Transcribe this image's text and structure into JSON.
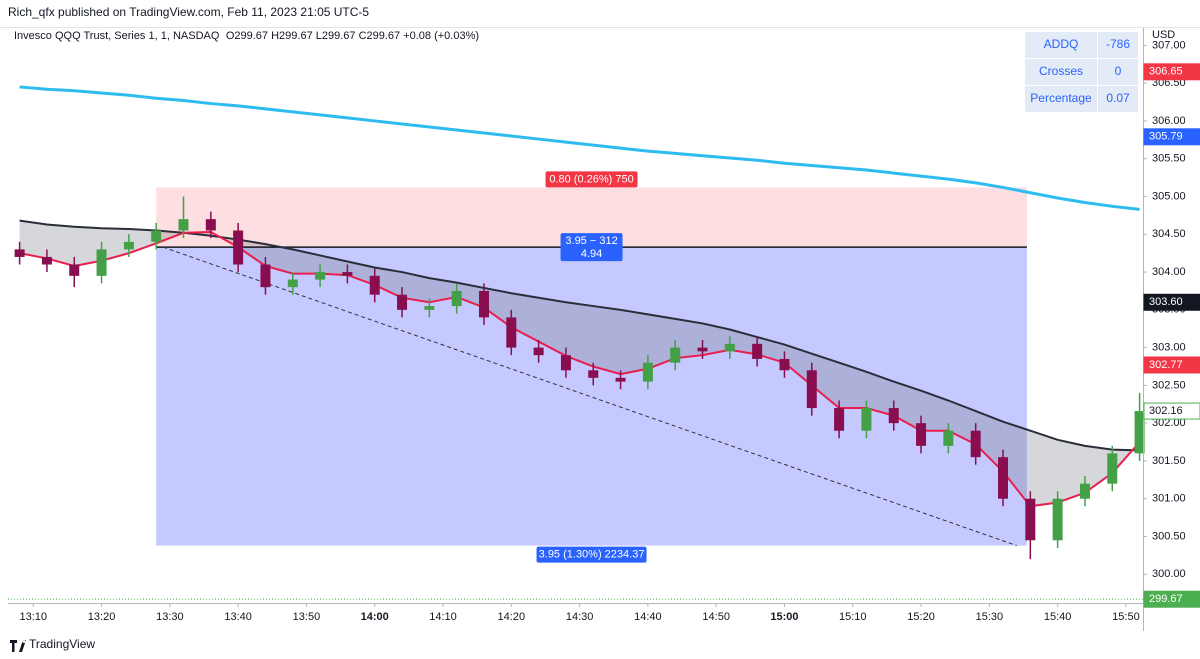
{
  "header": {
    "publisher": "Rich_qfx published on TradingView.com, Feb 11, 2023 21:05 UTC-5",
    "symbol": "Invesco QQQ Trust, Series 1, 1, NASDAQ",
    "ohlc": "O299.67 H299.67 L299.67 C299.67 +0.08 (+0.03%)",
    "currency": "USD"
  },
  "table": {
    "rows": [
      [
        "ADDQ",
        "-786"
      ],
      [
        "Crosses",
        "0"
      ],
      [
        "Percentage",
        "0.07"
      ]
    ]
  },
  "footer": {
    "brand": "TradingView"
  },
  "chart_data": {
    "type": "candlestick",
    "x": [
      788,
      792,
      796,
      800,
      804,
      808,
      812,
      816,
      820,
      824,
      828,
      832,
      836,
      840,
      844,
      848,
      852,
      856,
      860,
      864,
      868,
      872,
      876,
      880,
      884,
      888,
      892,
      896,
      900,
      904,
      908,
      912,
      916,
      920,
      924,
      928,
      932,
      936,
      940,
      944,
      948,
      952
    ],
    "open": [
      304.3,
      304.2,
      304.1,
      303.95,
      304.3,
      304.4,
      304.55,
      304.7,
      304.55,
      304.1,
      303.8,
      303.9,
      304.0,
      303.95,
      303.7,
      303.5,
      303.55,
      303.75,
      303.4,
      303.0,
      302.9,
      302.7,
      302.6,
      302.55,
      302.8,
      303.0,
      302.95,
      303.05,
      302.85,
      302.7,
      302.2,
      301.9,
      302.2,
      302.0,
      301.7,
      301.9,
      301.55,
      301.0,
      300.45,
      301.0,
      301.2,
      301.6
    ],
    "high": [
      304.4,
      304.3,
      304.2,
      304.4,
      304.5,
      304.65,
      305.0,
      304.8,
      304.65,
      304.2,
      304.0,
      304.1,
      304.1,
      304.05,
      303.8,
      303.65,
      303.85,
      303.85,
      303.5,
      303.1,
      303.0,
      302.8,
      302.7,
      302.9,
      303.1,
      303.1,
      303.15,
      303.15,
      302.95,
      302.8,
      302.3,
      302.3,
      302.3,
      302.1,
      302.0,
      302.0,
      301.65,
      301.1,
      301.1,
      301.3,
      301.7,
      302.4
    ],
    "low": [
      304.1,
      304.0,
      303.8,
      303.85,
      304.2,
      304.3,
      304.45,
      304.45,
      304.0,
      303.7,
      303.7,
      303.8,
      303.85,
      303.6,
      303.4,
      303.4,
      303.45,
      303.3,
      302.9,
      302.8,
      302.6,
      302.5,
      302.45,
      302.45,
      302.7,
      302.85,
      302.85,
      302.75,
      302.6,
      302.1,
      301.8,
      301.8,
      301.9,
      301.6,
      301.6,
      301.45,
      300.9,
      300.2,
      300.35,
      300.9,
      301.1,
      301.5
    ],
    "close": [
      304.2,
      304.1,
      303.95,
      304.3,
      304.4,
      304.55,
      304.7,
      304.55,
      304.1,
      303.8,
      303.9,
      304.0,
      303.95,
      303.7,
      303.5,
      303.55,
      303.75,
      303.4,
      303.0,
      302.9,
      302.7,
      302.6,
      302.55,
      302.8,
      303.0,
      302.95,
      303.05,
      302.85,
      302.7,
      302.2,
      301.9,
      302.2,
      302.0,
      301.7,
      301.9,
      301.55,
      301.0,
      300.45,
      301.0,
      301.2,
      301.6,
      302.16
    ],
    "up_color": "#43a047",
    "down_color": "#880e4f",
    "series": [
      {
        "color": "#2ebcf0",
        "values": [
          306.45,
          306.42,
          306.4,
          306.37,
          306.34,
          306.3,
          306.27,
          306.23,
          306.2,
          306.16,
          306.12,
          306.08,
          306.04,
          306.0,
          305.96,
          305.92,
          305.88,
          305.84,
          305.8,
          305.76,
          305.72,
          305.68,
          305.64,
          305.6,
          305.57,
          305.54,
          305.51,
          305.48,
          305.44,
          305.41,
          305.38,
          305.35,
          305.31,
          305.27,
          305.23,
          305.18,
          305.12,
          305.05,
          304.98,
          304.92,
          304.87,
          304.83
        ]
      },
      {
        "color": "#2a2e39",
        "values": [
          304.68,
          304.63,
          304.6,
          304.58,
          304.57,
          304.55,
          304.52,
          304.48,
          304.43,
          304.37,
          304.3,
          304.22,
          304.14,
          304.06,
          304.0,
          303.92,
          303.86,
          303.79,
          303.72,
          303.66,
          303.6,
          303.55,
          303.5,
          303.44,
          303.38,
          303.32,
          303.24,
          303.14,
          303.04,
          302.92,
          302.8,
          302.68,
          302.55,
          302.43,
          302.3,
          302.16,
          302.02,
          301.9,
          301.78,
          301.7,
          301.65,
          301.64
        ]
      },
      {
        "color": "#e91e4d",
        "values": [
          304.25,
          304.18,
          304.08,
          304.15,
          304.25,
          304.38,
          304.52,
          304.53,
          304.33,
          304.08,
          303.98,
          303.98,
          303.96,
          303.83,
          303.66,
          303.6,
          303.67,
          303.53,
          303.27,
          303.08,
          302.89,
          302.75,
          302.65,
          302.72,
          302.86,
          302.9,
          302.97,
          302.91,
          302.8,
          302.5,
          302.2,
          302.2,
          302.1,
          301.9,
          301.9,
          301.72,
          301.36,
          300.9,
          300.95,
          301.08,
          301.34,
          301.75
        ]
      }
    ],
    "position": {
      "x_start": 808,
      "x_end": 935.5,
      "stop": 305.12,
      "entry": 304.33,
      "target": 300.38,
      "stop_label": "0.80 (0.26%) 750",
      "entry_label": "3.95 − 312",
      "entry_sub": "4.94",
      "target_label": "3.95 (1.30%) 2234.37",
      "dash_from": 809,
      "dash_to": 934
    },
    "price_labels": [
      {
        "value": 306.65,
        "label": "306.65",
        "color": "#f23645"
      },
      {
        "value": 305.79,
        "label": "305.79",
        "color": "#2962ff"
      },
      {
        "value": 303.6,
        "label": "303.60",
        "color": "#131722"
      },
      {
        "value": 302.77,
        "label": "302.77",
        "color": "#f23645"
      },
      {
        "value": 302.16,
        "label": "302.16",
        "color": "#4caf50"
      },
      {
        "value": 299.67,
        "label": "299.67",
        "color": "#4caf50"
      }
    ],
    "xlim": [
      786.3,
      952.5
    ],
    "ylim": [
      299.62,
      307.23
    ],
    "xticks": [
      {
        "value": 790,
        "label": "13:10"
      },
      {
        "value": 800,
        "label": "13:20"
      },
      {
        "value": 810,
        "label": "13:30"
      },
      {
        "value": 820,
        "label": "13:40"
      },
      {
        "value": 830,
        "label": "13:50"
      },
      {
        "value": 840,
        "label": "14:00"
      },
      {
        "value": 850,
        "label": "14:10"
      },
      {
        "value": 860,
        "label": "14:20"
      },
      {
        "value": 870,
        "label": "14:30"
      },
      {
        "value": 880,
        "label": "14:40"
      },
      {
        "value": 890,
        "label": "14:50"
      },
      {
        "value": 900,
        "label": "15:00"
      },
      {
        "value": 910,
        "label": "15:10"
      },
      {
        "value": 920,
        "label": "15:20"
      },
      {
        "value": 930,
        "label": "15:30"
      },
      {
        "value": 940,
        "label": "15:40"
      },
      {
        "value": 950,
        "label": "15:50"
      }
    ],
    "yticks": [
      {
        "value": 300,
        "label": "300.00"
      },
      {
        "value": 300.5,
        "label": "300.50"
      },
      {
        "value": 301,
        "label": "301.00"
      },
      {
        "value": 301.5,
        "label": "301.50"
      },
      {
        "value": 302,
        "label": "302.00"
      },
      {
        "value": 302.5,
        "label": "302.50"
      },
      {
        "value": 303,
        "label": "303.00"
      },
      {
        "value": 303.5,
        "label": "303.50"
      },
      {
        "value": 304,
        "label": "304.00"
      },
      {
        "value": 304.5,
        "label": "304.50"
      },
      {
        "value": 305,
        "label": "305.00"
      },
      {
        "value": 305.5,
        "label": "305.50"
      },
      {
        "value": 306,
        "label": "306.00"
      },
      {
        "value": 306.5,
        "label": "306.50"
      },
      {
        "value": 307,
        "label": "307.00"
      }
    ]
  }
}
